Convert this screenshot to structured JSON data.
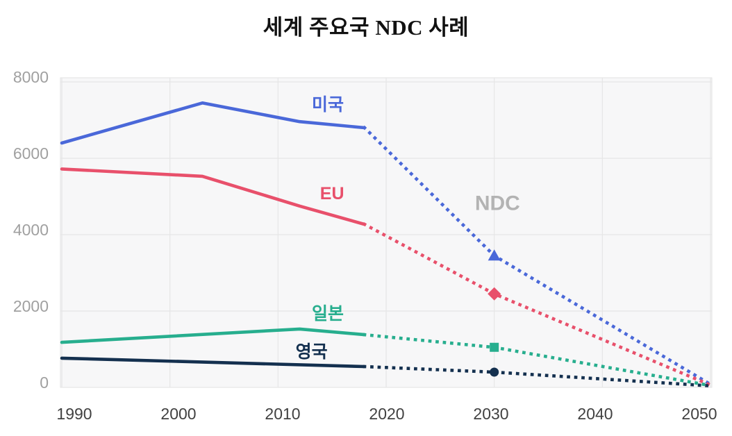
{
  "page": {
    "background": "#ffffff"
  },
  "chart_data": {
    "type": "line",
    "title": "세계 주요국 NDC 사례",
    "xlabel": "",
    "ylabel": "",
    "xlim": [
      1990,
      2050
    ],
    "ylim": [
      0,
      8100
    ],
    "x_ticks": [
      1990,
      2000,
      2010,
      2020,
      2030,
      2040,
      2050
    ],
    "y_ticks": [
      0,
      2000,
      4000,
      6000,
      8000
    ],
    "grid": true,
    "legend_position": "inline-labels-on-lines",
    "annotations": [
      {
        "id": "ndc",
        "text": "NDC",
        "x": 2030.3,
        "y": 4820,
        "color": "#b3b3b3",
        "font_size": 30
      }
    ],
    "series": [
      {
        "id": "usa",
        "label": "미국",
        "color": "#4a68d9",
        "marker": "triangle",
        "label_x": 2014.6,
        "label_y": 7400,
        "solid_points": [
          [
            1990,
            6400
          ],
          [
            2003,
            7450
          ],
          [
            2012,
            6960
          ],
          [
            2018,
            6800
          ]
        ],
        "dotted_points": [
          [
            2018,
            6800
          ],
          [
            2030,
            3450
          ],
          [
            2050,
            80
          ]
        ],
        "ndc_2030_value": 3450
      },
      {
        "id": "eu",
        "label": "EU",
        "color": "#e8506b",
        "marker": "diamond",
        "label_x": 2015.0,
        "label_y": 5070,
        "solid_points": [
          [
            1990,
            5720
          ],
          [
            2003,
            5530
          ],
          [
            2012,
            4750
          ],
          [
            2018,
            4270
          ]
        ],
        "dotted_points": [
          [
            2018,
            4270
          ],
          [
            2030,
            2450
          ],
          [
            2050,
            60
          ]
        ],
        "ndc_2030_value": 2450
      },
      {
        "id": "japan",
        "label": "일본",
        "color": "#27ae8e",
        "marker": "square",
        "label_x": 2014.6,
        "label_y": 1930,
        "solid_points": [
          [
            1990,
            1180
          ],
          [
            2012,
            1530
          ],
          [
            2018,
            1380
          ]
        ],
        "dotted_points": [
          [
            2018,
            1380
          ],
          [
            2030,
            1050
          ],
          [
            2050,
            50
          ]
        ],
        "ndc_2030_value": 1050
      },
      {
        "id": "uk",
        "label": "영국",
        "color": "#14304f",
        "marker": "circle",
        "label_x": 2013.1,
        "label_y": 930,
        "solid_points": [
          [
            1990,
            765
          ],
          [
            2018,
            545
          ]
        ],
        "dotted_points": [
          [
            2018,
            545
          ],
          [
            2030,
            400
          ],
          [
            2050,
            40
          ]
        ],
        "ndc_2030_value": 400
      }
    ],
    "axis_style": {
      "x_tick_color": "#414141",
      "y_tick_color": "#a0a0a0",
      "grid_color": "#e6e6e6",
      "plot_background": "#f7f7f8",
      "plot_border": "#e2e2e2",
      "tick_font_size": 23
    }
  }
}
